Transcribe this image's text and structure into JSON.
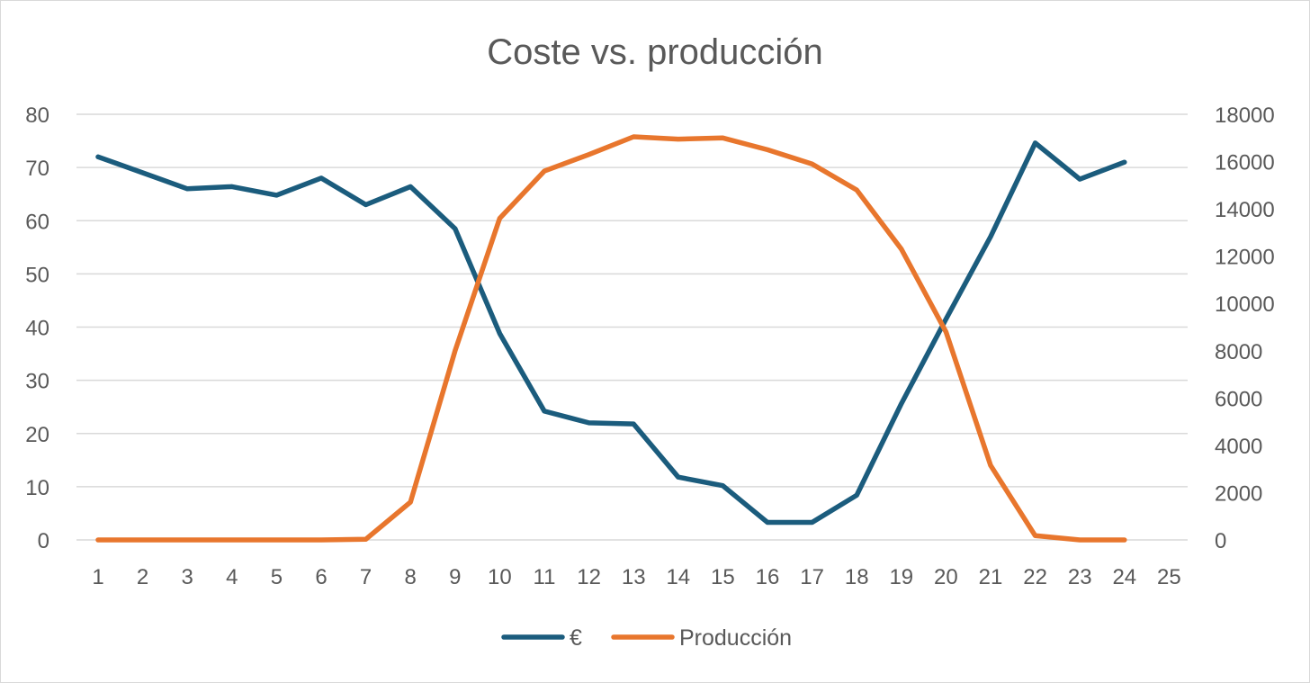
{
  "chart_data": {
    "type": "line",
    "title": "Coste vs. producción",
    "x": [
      1,
      2,
      3,
      4,
      5,
      6,
      7,
      8,
      9,
      10,
      11,
      12,
      13,
      14,
      15,
      16,
      17,
      18,
      19,
      20,
      21,
      22,
      23,
      24
    ],
    "x_ticks": [
      "1",
      "2",
      "3",
      "4",
      "5",
      "6",
      "7",
      "8",
      "9",
      "10",
      "11",
      "12",
      "13",
      "14",
      "15",
      "16",
      "17",
      "18",
      "19",
      "20",
      "21",
      "22",
      "23",
      "24",
      "25"
    ],
    "xlim": [
      1,
      25
    ],
    "y_left_ticks": [
      "0",
      "10",
      "20",
      "30",
      "40",
      "50",
      "60",
      "70",
      "80"
    ],
    "y_right_ticks": [
      "0",
      "2000",
      "4000",
      "6000",
      "8000",
      "10000",
      "12000",
      "14000",
      "16000",
      "18000"
    ],
    "ylim_left": [
      0,
      80
    ],
    "ylim_right": [
      0,
      18000
    ],
    "grid": true,
    "legend_position": "bottom",
    "series": [
      {
        "name": "€",
        "axis": "left",
        "color": "#1b5c7d",
        "values": [
          72,
          69,
          66,
          66.4,
          64.8,
          68,
          63,
          66.4,
          58.5,
          38.8,
          24.2,
          22,
          21.8,
          11.8,
          10.2,
          3.3,
          3.3,
          8.4,
          25.6,
          41.5,
          57,
          74.6,
          67.8,
          71
        ]
      },
      {
        "name": "Producción",
        "axis": "right",
        "color": "#e8762d",
        "values": [
          0,
          0,
          0,
          0,
          0,
          0,
          30,
          1600,
          8000,
          13600,
          15600,
          16300,
          17050,
          16950,
          17000,
          16500,
          15900,
          14800,
          12300,
          8800,
          3150,
          180,
          0,
          0
        ]
      }
    ]
  }
}
